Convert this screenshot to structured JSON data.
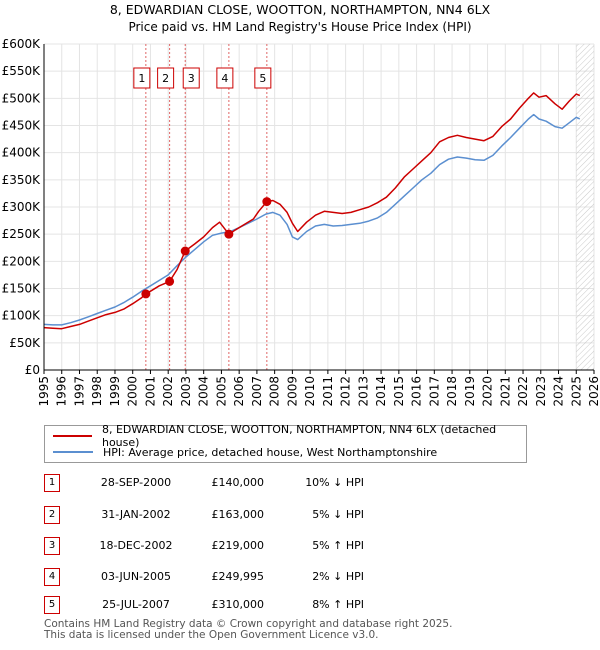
{
  "chart_data": {
    "type": "line",
    "title": "8, EDWARDIAN CLOSE, WOOTTON, NORTHAMPTON, NN4 6LX",
    "subtitle": "Price paid vs. HM Land Registry's House Price Index (HPI)",
    "xlim": [
      1995,
      2026
    ],
    "ylim": [
      0,
      600000
    ],
    "x_ticks": [
      1995,
      1996,
      1997,
      1998,
      1999,
      2000,
      2001,
      2002,
      2003,
      2004,
      2005,
      2006,
      2007,
      2008,
      2009,
      2010,
      2011,
      2012,
      2013,
      2014,
      2015,
      2016,
      2017,
      2018,
      2019,
      2020,
      2021,
      2022,
      2023,
      2024,
      2025,
      2026
    ],
    "y_ticks": [
      {
        "value": 0,
        "label": "£0"
      },
      {
        "value": 50000,
        "label": "£50K"
      },
      {
        "value": 100000,
        "label": "£100K"
      },
      {
        "value": 150000,
        "label": "£150K"
      },
      {
        "value": 200000,
        "label": "£200K"
      },
      {
        "value": 250000,
        "label": "£250K"
      },
      {
        "value": 300000,
        "label": "£300K"
      },
      {
        "value": 350000,
        "label": "£350K"
      },
      {
        "value": 400000,
        "label": "£400K"
      },
      {
        "value": 450000,
        "label": "£450K"
      },
      {
        "value": 500000,
        "label": "£500K"
      },
      {
        "value": 550000,
        "label": "£550K"
      },
      {
        "value": 600000,
        "label": "£600K"
      }
    ],
    "forecast_start": 2025.0,
    "series": [
      {
        "name": "8, EDWARDIAN CLOSE, WOOTTON, NORTHAMPTON, NN4 6LX (detached house)",
        "color": "#cc0000",
        "points": [
          [
            1995.0,
            78000
          ],
          [
            1995.5,
            77000
          ],
          [
            1996.0,
            76000
          ],
          [
            1996.5,
            80000
          ],
          [
            1997.0,
            84000
          ],
          [
            1997.5,
            90000
          ],
          [
            1998.0,
            96000
          ],
          [
            1998.5,
            102000
          ],
          [
            1999.0,
            106000
          ],
          [
            1999.5,
            112000
          ],
          [
            2000.0,
            122000
          ],
          [
            2000.5,
            133000
          ],
          [
            2000.74,
            140000
          ],
          [
            2001.0,
            145000
          ],
          [
            2001.5,
            155000
          ],
          [
            2002.08,
            163000
          ],
          [
            2002.5,
            185000
          ],
          [
            2002.96,
            219000
          ],
          [
            2003.5,
            232000
          ],
          [
            2004.0,
            245000
          ],
          [
            2004.5,
            262000
          ],
          [
            2004.9,
            272000
          ],
          [
            2005.42,
            249995
          ],
          [
            2005.8,
            258000
          ],
          [
            2006.3,
            268000
          ],
          [
            2006.8,
            278000
          ],
          [
            2007.1,
            292000
          ],
          [
            2007.56,
            310000
          ],
          [
            2007.9,
            312000
          ],
          [
            2008.3,
            305000
          ],
          [
            2008.7,
            290000
          ],
          [
            2009.0,
            270000
          ],
          [
            2009.3,
            255000
          ],
          [
            2009.8,
            272000
          ],
          [
            2010.3,
            285000
          ],
          [
            2010.8,
            292000
          ],
          [
            2011.3,
            290000
          ],
          [
            2011.8,
            288000
          ],
          [
            2012.3,
            290000
          ],
          [
            2012.8,
            295000
          ],
          [
            2013.3,
            300000
          ],
          [
            2013.8,
            308000
          ],
          [
            2014.3,
            318000
          ],
          [
            2014.8,
            335000
          ],
          [
            2015.3,
            355000
          ],
          [
            2015.8,
            370000
          ],
          [
            2016.3,
            385000
          ],
          [
            2016.8,
            400000
          ],
          [
            2017.3,
            420000
          ],
          [
            2017.8,
            428000
          ],
          [
            2018.3,
            432000
          ],
          [
            2018.8,
            428000
          ],
          [
            2019.3,
            425000
          ],
          [
            2019.8,
            422000
          ],
          [
            2020.3,
            430000
          ],
          [
            2020.8,
            448000
          ],
          [
            2021.3,
            462000
          ],
          [
            2021.8,
            482000
          ],
          [
            2022.3,
            500000
          ],
          [
            2022.6,
            510000
          ],
          [
            2022.9,
            502000
          ],
          [
            2023.3,
            505000
          ],
          [
            2023.8,
            490000
          ],
          [
            2024.2,
            480000
          ],
          [
            2024.6,
            495000
          ],
          [
            2025.0,
            508000
          ],
          [
            2025.2,
            505000
          ]
        ]
      },
      {
        "name": "HPI: Average price, detached house, West Northamptonshire",
        "color": "#5b8fd0",
        "points": [
          [
            1995.0,
            84000
          ],
          [
            1995.5,
            83000
          ],
          [
            1996.0,
            83000
          ],
          [
            1996.5,
            87000
          ],
          [
            1997.0,
            92000
          ],
          [
            1997.5,
            98000
          ],
          [
            1998.0,
            104000
          ],
          [
            1998.5,
            110000
          ],
          [
            1999.0,
            116000
          ],
          [
            1999.5,
            124000
          ],
          [
            2000.0,
            134000
          ],
          [
            2000.5,
            145000
          ],
          [
            2001.0,
            155000
          ],
          [
            2001.5,
            165000
          ],
          [
            2002.0,
            175000
          ],
          [
            2002.5,
            192000
          ],
          [
            2003.0,
            208000
          ],
          [
            2003.5,
            222000
          ],
          [
            2004.0,
            236000
          ],
          [
            2004.5,
            248000
          ],
          [
            2005.0,
            252000
          ],
          [
            2005.5,
            255000
          ],
          [
            2006.0,
            262000
          ],
          [
            2006.5,
            270000
          ],
          [
            2007.0,
            278000
          ],
          [
            2007.5,
            287000
          ],
          [
            2007.9,
            290000
          ],
          [
            2008.3,
            285000
          ],
          [
            2008.7,
            268000
          ],
          [
            2009.0,
            245000
          ],
          [
            2009.3,
            240000
          ],
          [
            2009.8,
            255000
          ],
          [
            2010.3,
            265000
          ],
          [
            2010.8,
            268000
          ],
          [
            2011.3,
            265000
          ],
          [
            2011.8,
            266000
          ],
          [
            2012.3,
            268000
          ],
          [
            2012.8,
            270000
          ],
          [
            2013.3,
            274000
          ],
          [
            2013.8,
            280000
          ],
          [
            2014.3,
            290000
          ],
          [
            2014.8,
            305000
          ],
          [
            2015.3,
            320000
          ],
          [
            2015.8,
            335000
          ],
          [
            2016.3,
            350000
          ],
          [
            2016.8,
            362000
          ],
          [
            2017.3,
            378000
          ],
          [
            2017.8,
            388000
          ],
          [
            2018.3,
            392000
          ],
          [
            2018.8,
            390000
          ],
          [
            2019.3,
            387000
          ],
          [
            2019.8,
            386000
          ],
          [
            2020.3,
            395000
          ],
          [
            2020.8,
            412000
          ],
          [
            2021.3,
            428000
          ],
          [
            2021.8,
            445000
          ],
          [
            2022.3,
            462000
          ],
          [
            2022.6,
            470000
          ],
          [
            2022.9,
            462000
          ],
          [
            2023.3,
            458000
          ],
          [
            2023.8,
            448000
          ],
          [
            2024.2,
            445000
          ],
          [
            2024.6,
            455000
          ],
          [
            2025.0,
            465000
          ],
          [
            2025.2,
            462000
          ]
        ]
      }
    ],
    "sales": [
      {
        "label": "1",
        "x": 2000.74,
        "price": 140000
      },
      {
        "label": "2",
        "x": 2002.08,
        "price": 163000
      },
      {
        "label": "3",
        "x": 2002.96,
        "price": 219000
      },
      {
        "label": "4",
        "x": 2005.42,
        "price": 249995
      },
      {
        "label": "5",
        "x": 2007.56,
        "price": 310000
      }
    ]
  },
  "legend": {
    "property_label": "8, EDWARDIAN CLOSE, WOOTTON, NORTHAMPTON, NN4 6LX (detached house)",
    "hpi_label": "HPI: Average price, detached house, West Northamptonshire",
    "property_color": "#cc0000",
    "hpi_color": "#5b8fd0"
  },
  "transactions": [
    {
      "num": "1",
      "date": "28-SEP-2000",
      "price": "£140,000",
      "delta": "10% ↓ HPI"
    },
    {
      "num": "2",
      "date": "31-JAN-2002",
      "price": "£163,000",
      "delta": "5% ↓ HPI"
    },
    {
      "num": "3",
      "date": "18-DEC-2002",
      "price": "£219,000",
      "delta": "5% ↑ HPI"
    },
    {
      "num": "4",
      "date": "03-JUN-2005",
      "price": "£249,995",
      "delta": "2% ↓ HPI"
    },
    {
      "num": "5",
      "date": "25-JUL-2007",
      "price": "£310,000",
      "delta": "8% ↑ HPI"
    }
  ],
  "footer": {
    "line1": "Contains HM Land Registry data © Crown copyright and database right 2025.",
    "line2": "This data is licensed under the Open Government Licence v3.0."
  }
}
